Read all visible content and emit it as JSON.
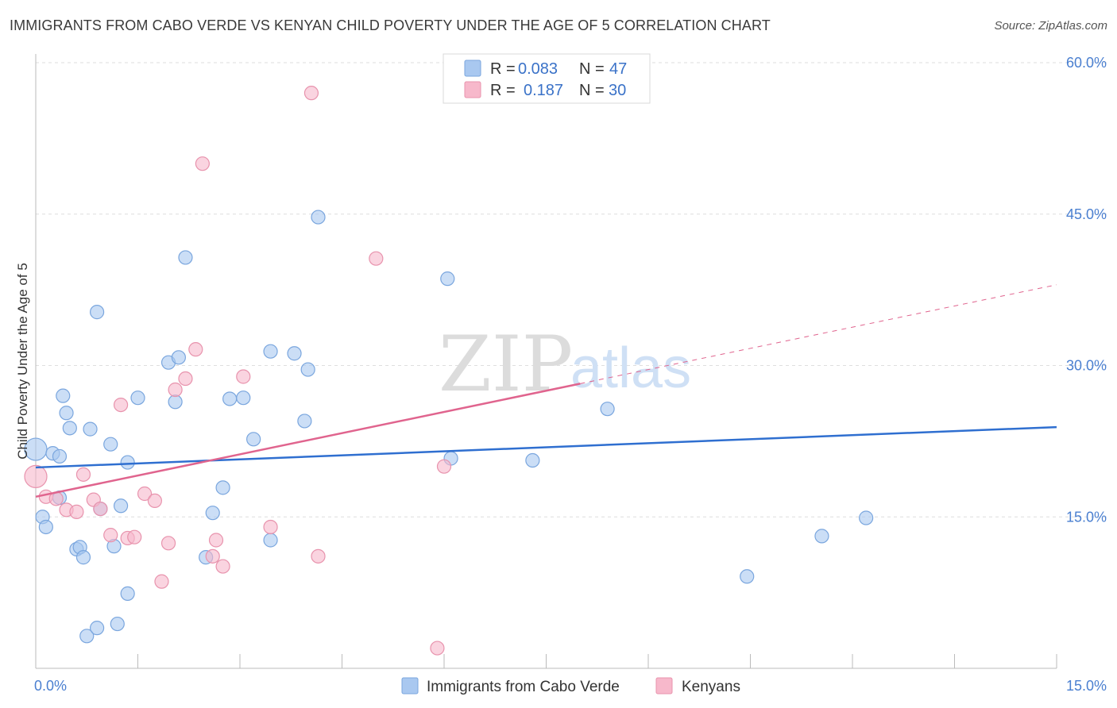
{
  "title": "IMMIGRANTS FROM CABO VERDE VS KENYAN CHILD POVERTY UNDER THE AGE OF 5 CORRELATION CHART",
  "source": "Source: ZipAtlas.com",
  "watermark": {
    "zip": "ZIP",
    "atlas": "atlas"
  },
  "legend": {
    "rows": [
      {
        "r_label": "R =",
        "r_value": "0.083",
        "n_label": "N =",
        "n_value": "47",
        "color": "#a9c8f0"
      },
      {
        "r_label": "R =",
        "r_value": "0.187",
        "n_label": "N =",
        "n_value": "30",
        "color": "#f7b8cb"
      }
    ]
  },
  "chart_data": {
    "type": "scatter",
    "ylabel": "Child Poverty Under the Age of 5",
    "xlim": [
      0,
      15
    ],
    "ylim": [
      0,
      60
    ],
    "x_tick_labels": [
      {
        "value": 0,
        "label": "0.0%"
      },
      {
        "value": 15,
        "label": "15.0%"
      }
    ],
    "y_tick_labels": [
      {
        "value": 15,
        "label": "15.0%"
      },
      {
        "value": 30,
        "label": "30.0%"
      },
      {
        "value": 45,
        "label": "45.0%"
      },
      {
        "value": 60,
        "label": "60.0%"
      }
    ],
    "grid": true,
    "series": [
      {
        "name": "Immigrants from Cabo Verde",
        "color": "#a9c8f0",
        "stroke": "#7aa6de",
        "line_color": "#2f6fd0",
        "trend": {
          "x": [
            0,
            15
          ],
          "y": [
            19.9,
            23.9
          ]
        },
        "points": [
          [
            0.0,
            21.7
          ],
          [
            0.1,
            15.0
          ],
          [
            0.15,
            14.0
          ],
          [
            0.25,
            21.3
          ],
          [
            0.35,
            21.0
          ],
          [
            0.35,
            16.9
          ],
          [
            0.45,
            25.3
          ],
          [
            0.5,
            23.8
          ],
          [
            0.6,
            11.8
          ],
          [
            0.65,
            12.0
          ],
          [
            0.7,
            11.0
          ],
          [
            0.75,
            3.2
          ],
          [
            0.8,
            23.7
          ],
          [
            0.9,
            4.0
          ],
          [
            0.9,
            35.3
          ],
          [
            0.95,
            15.8
          ],
          [
            1.1,
            22.2
          ],
          [
            1.15,
            12.1
          ],
          [
            1.2,
            4.4
          ],
          [
            1.25,
            16.1
          ],
          [
            1.35,
            7.4
          ],
          [
            1.35,
            20.4
          ],
          [
            1.5,
            26.8
          ],
          [
            1.95,
            30.3
          ],
          [
            2.05,
            26.4
          ],
          [
            2.1,
            30.8
          ],
          [
            2.2,
            40.7
          ],
          [
            2.5,
            11.0
          ],
          [
            2.6,
            15.4
          ],
          [
            2.75,
            17.9
          ],
          [
            2.85,
            26.7
          ],
          [
            3.05,
            26.8
          ],
          [
            3.2,
            22.7
          ],
          [
            3.45,
            31.4
          ],
          [
            3.45,
            12.7
          ],
          [
            3.8,
            31.2
          ],
          [
            3.95,
            24.5
          ],
          [
            4.0,
            29.6
          ],
          [
            4.15,
            44.7
          ],
          [
            6.05,
            38.6
          ],
          [
            6.1,
            20.8
          ],
          [
            7.3,
            20.6
          ],
          [
            8.4,
            25.7
          ],
          [
            10.45,
            9.1
          ],
          [
            11.55,
            13.1
          ],
          [
            12.2,
            14.9
          ],
          [
            0.4,
            27.0
          ]
        ]
      },
      {
        "name": "Kenyans",
        "color": "#f7b8cb",
        "stroke": "#e893ad",
        "line_color": "#e0648e",
        "trend": {
          "x": [
            0,
            8.0
          ],
          "y": [
            17.0,
            28.2
          ]
        },
        "trend_dashed": {
          "x": [
            8.0,
            15
          ],
          "y": [
            28.2,
            38.0
          ]
        },
        "points": [
          [
            0.0,
            19.0
          ],
          [
            0.15,
            17.0
          ],
          [
            0.3,
            16.8
          ],
          [
            0.45,
            15.7
          ],
          [
            0.6,
            15.5
          ],
          [
            0.7,
            19.2
          ],
          [
            0.85,
            16.7
          ],
          [
            0.95,
            15.8
          ],
          [
            1.1,
            13.2
          ],
          [
            1.25,
            26.1
          ],
          [
            1.35,
            12.9
          ],
          [
            1.45,
            13.0
          ],
          [
            1.6,
            17.3
          ],
          [
            1.75,
            16.6
          ],
          [
            1.85,
            8.6
          ],
          [
            1.95,
            12.4
          ],
          [
            2.05,
            27.6
          ],
          [
            2.2,
            28.7
          ],
          [
            2.35,
            31.6
          ],
          [
            2.45,
            50.0
          ],
          [
            2.6,
            11.1
          ],
          [
            2.65,
            12.7
          ],
          [
            2.75,
            10.1
          ],
          [
            3.05,
            28.9
          ],
          [
            3.45,
            14.0
          ],
          [
            4.05,
            57.0
          ],
          [
            4.15,
            11.1
          ],
          [
            5.0,
            40.6
          ],
          [
            5.9,
            2.0
          ],
          [
            6.0,
            20.0
          ]
        ]
      }
    ]
  }
}
